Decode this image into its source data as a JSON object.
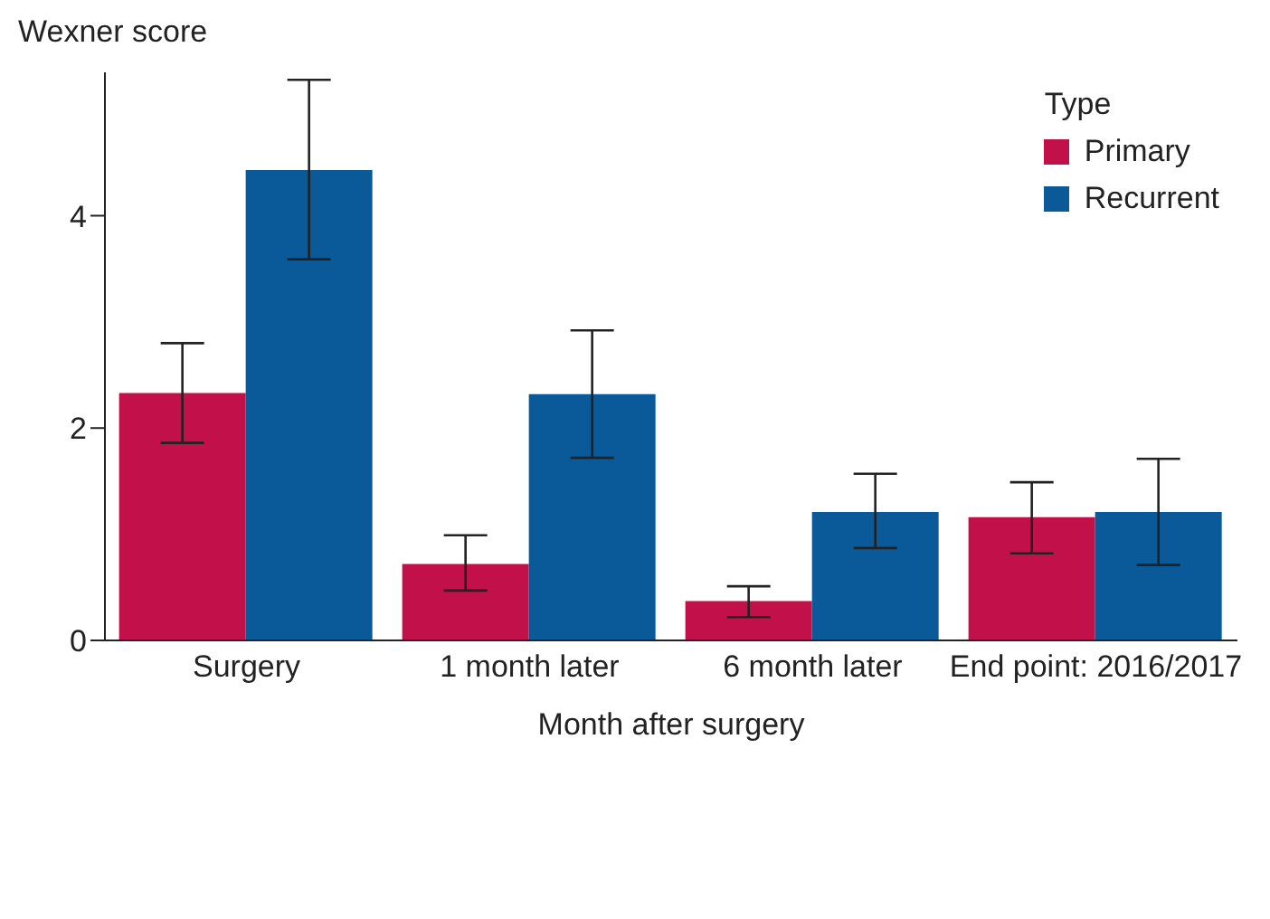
{
  "chart_data": {
    "type": "bar",
    "ylabel": "Wexner score",
    "xlabel": "Month after surgery",
    "legend_title": "Type",
    "legend": "top right",
    "grid": false,
    "categories": [
      "Surgery",
      "1 month later",
      "6 month later",
      "End point: 2016/2017"
    ],
    "ylim": [
      0,
      5.35
    ],
    "yticks": [
      0,
      2,
      4
    ],
    "series": [
      {
        "name": "Primary",
        "color": "#c2104a",
        "values": [
          2.33,
          0.72,
          0.37,
          1.16
        ],
        "errors": [
          [
            1.86,
            2.8
          ],
          [
            0.47,
            0.99
          ],
          [
            0.22,
            0.51
          ],
          [
            0.82,
            1.49
          ]
        ]
      },
      {
        "name": "Recurrent",
        "color": "#0a5a9a",
        "values": [
          4.43,
          2.32,
          1.21,
          1.21
        ],
        "errors": [
          [
            3.59,
            5.28
          ],
          [
            1.72,
            2.92
          ],
          [
            0.87,
            1.57
          ],
          [
            0.71,
            1.71
          ]
        ]
      }
    ]
  }
}
